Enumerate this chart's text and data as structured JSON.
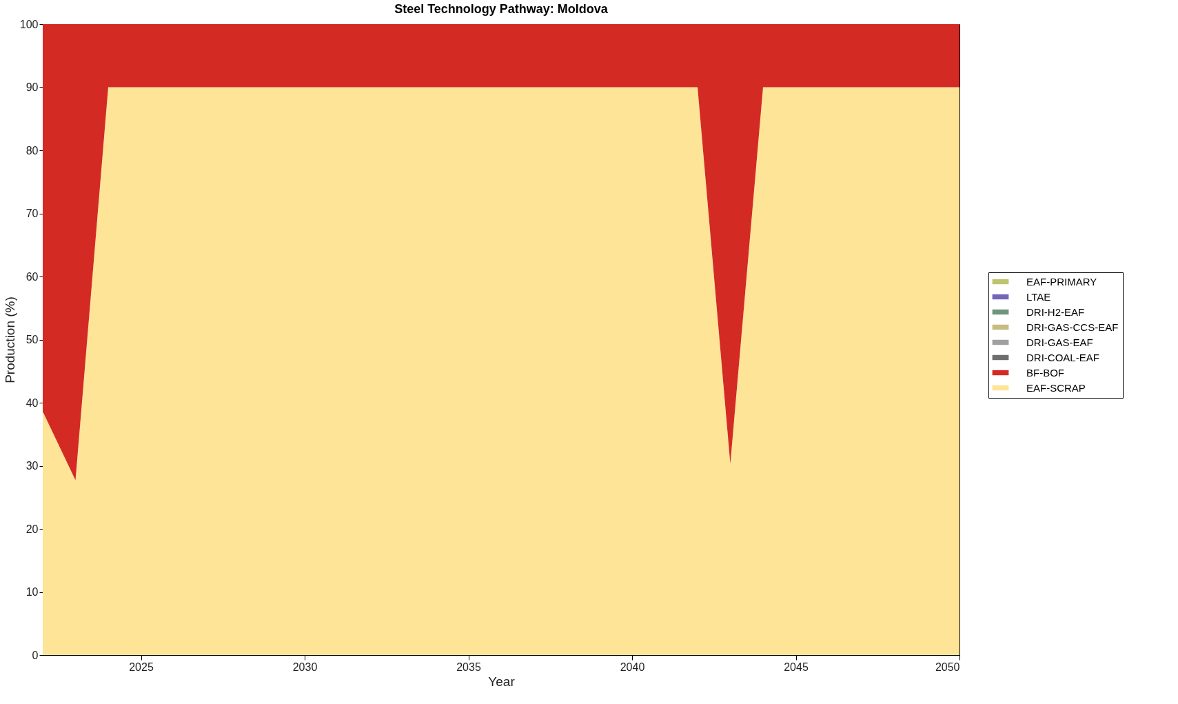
{
  "chart_data": {
    "type": "area",
    "title": "Steel Technology Pathway: Moldova",
    "xlabel": "Year",
    "ylabel": "Production (%)",
    "x": [
      2022,
      2023,
      2024,
      2025,
      2026,
      2027,
      2028,
      2029,
      2030,
      2031,
      2032,
      2033,
      2034,
      2035,
      2036,
      2037,
      2038,
      2039,
      2040,
      2041,
      2042,
      2043,
      2044,
      2045,
      2046,
      2047,
      2048,
      2049,
      2050
    ],
    "stacked": true,
    "series": [
      {
        "name": "EAF-SCRAP",
        "color": "#fee497",
        "values": [
          38.6,
          27.7,
          90,
          90,
          90,
          90,
          90,
          90,
          90,
          90,
          90,
          90,
          90,
          90,
          90,
          90,
          90,
          90,
          90,
          90,
          90,
          30.3,
          90,
          90,
          90,
          90,
          90,
          90,
          90
        ]
      },
      {
        "name": "BF-BOF",
        "color": "#d42a24",
        "values": [
          61.4,
          72.3,
          10,
          10,
          10,
          10,
          10,
          10,
          10,
          10,
          10,
          10,
          10,
          10,
          10,
          10,
          10,
          10,
          10,
          10,
          10,
          69.7,
          10,
          10,
          10,
          10,
          10,
          10,
          10
        ]
      },
      {
        "name": "DRI-COAL-EAF",
        "color": "#6e6e6e",
        "values": [
          null,
          null,
          null,
          null,
          null,
          null,
          null,
          null,
          null,
          null,
          null,
          null,
          null,
          null,
          null,
          null,
          null,
          null,
          null,
          null,
          null,
          null,
          null,
          null,
          null,
          null,
          null,
          null,
          null
        ]
      },
      {
        "name": "DRI-GAS-EAF",
        "color": "#a0a0a0",
        "values": [
          null,
          null,
          null,
          null,
          null,
          null,
          null,
          null,
          null,
          null,
          null,
          null,
          null,
          null,
          null,
          null,
          null,
          null,
          null,
          null,
          null,
          null,
          null,
          null,
          null,
          null,
          null,
          null,
          null
        ]
      },
      {
        "name": "DRI-GAS-CCS-EAF",
        "color": "#c6bb80",
        "values": [
          null,
          null,
          null,
          null,
          null,
          null,
          null,
          null,
          null,
          null,
          null,
          null,
          null,
          null,
          null,
          null,
          null,
          null,
          null,
          null,
          null,
          null,
          null,
          null,
          null,
          null,
          null,
          null,
          null
        ]
      },
      {
        "name": "DRI-H2-EAF",
        "color": "#6f967a",
        "values": [
          null,
          null,
          null,
          null,
          null,
          null,
          null,
          null,
          null,
          null,
          null,
          null,
          null,
          null,
          null,
          null,
          null,
          null,
          null,
          null,
          null,
          null,
          null,
          null,
          null,
          null,
          null,
          null,
          null
        ]
      },
      {
        "name": "LTAE",
        "color": "#7366b8",
        "values": [
          null,
          null,
          null,
          null,
          null,
          null,
          null,
          null,
          null,
          null,
          null,
          null,
          null,
          null,
          null,
          null,
          null,
          null,
          null,
          null,
          null,
          null,
          null,
          null,
          null,
          null,
          null,
          null,
          null
        ]
      },
      {
        "name": "EAF-PRIMARY",
        "color": "#bdc46c",
        "values": [
          null,
          null,
          null,
          null,
          null,
          null,
          null,
          null,
          null,
          null,
          null,
          null,
          null,
          null,
          null,
          null,
          null,
          null,
          null,
          null,
          null,
          null,
          null,
          null,
          null,
          null,
          null,
          null,
          null
        ]
      }
    ],
    "xlim": [
      2022,
      2050
    ],
    "xticks": [
      2025,
      2030,
      2035,
      2040,
      2045,
      2050
    ],
    "ylim": [
      0,
      100
    ],
    "yticks": [
      0,
      10,
      20,
      30,
      40,
      50,
      60,
      70,
      80,
      90,
      100
    ],
    "grid": false,
    "legend": "right"
  }
}
